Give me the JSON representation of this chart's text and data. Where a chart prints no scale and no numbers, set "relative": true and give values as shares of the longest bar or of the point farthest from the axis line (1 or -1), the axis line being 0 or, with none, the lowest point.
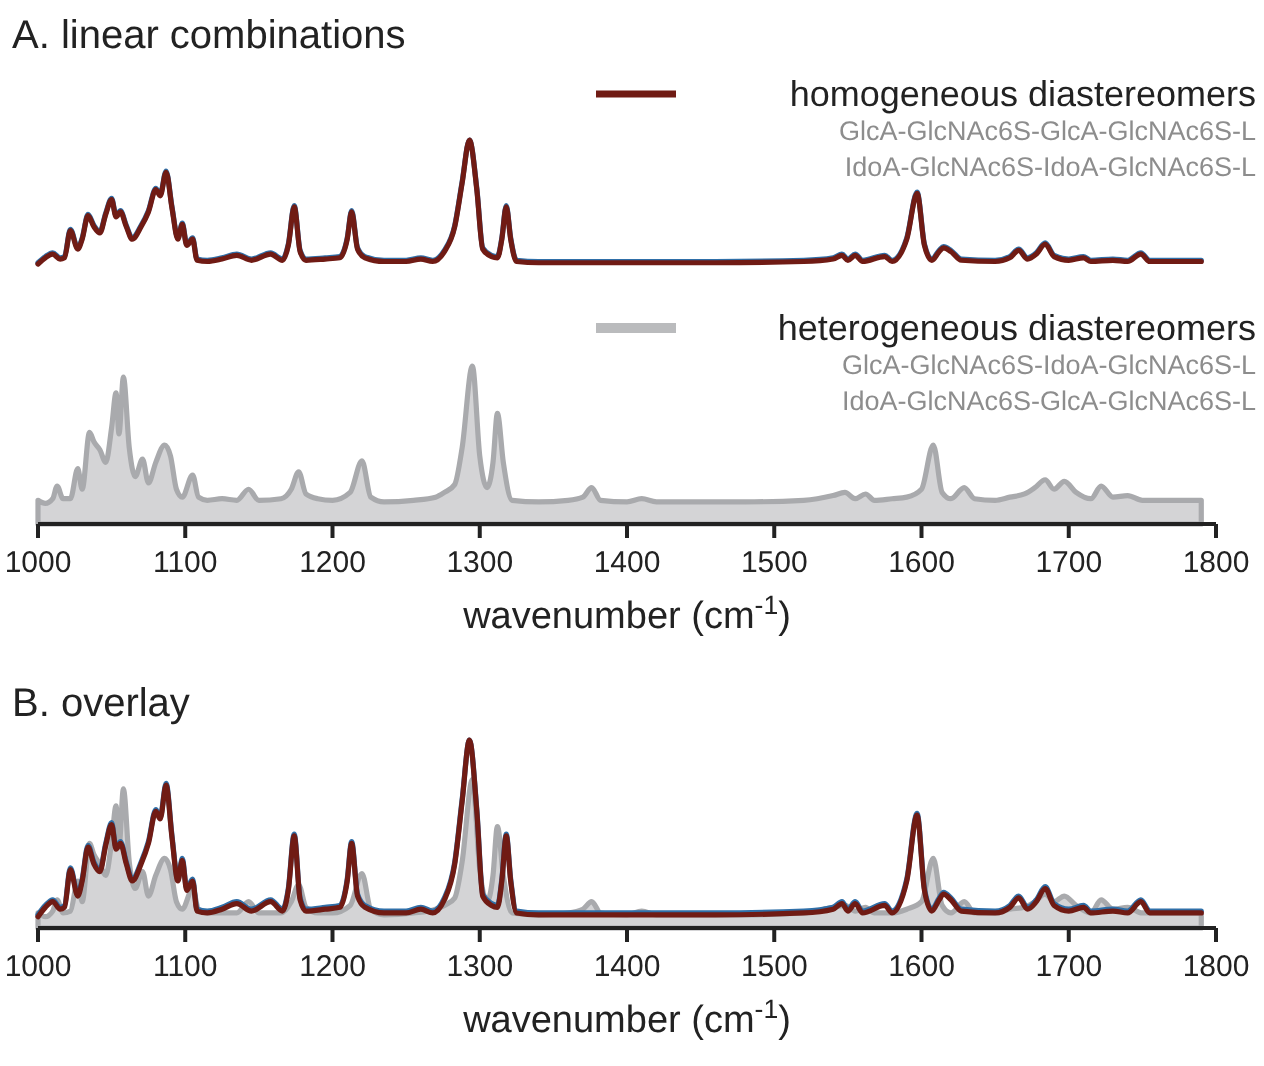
{
  "chart_data": [
    {
      "type": "line",
      "title": "A. linear combinations",
      "relative": true,
      "xlim": [
        1000,
        1800
      ],
      "tick_labels": false,
      "legend": "top right",
      "annotations": [
        "GlcA-GlcNAc6S-GlcA-GlcNAc6S-L",
        "IdoA-GlcNAc6S-IdoA-GlcNAc6S-L"
      ],
      "x": [
        1000,
        1005,
        1010,
        1015,
        1018,
        1022,
        1027,
        1030,
        1034,
        1038,
        1042,
        1046,
        1050,
        1053,
        1056,
        1060,
        1064,
        1070,
        1075,
        1080,
        1083,
        1087,
        1091,
        1095,
        1098,
        1101,
        1105,
        1108,
        1115,
        1125,
        1135,
        1145,
        1158,
        1166,
        1170,
        1174,
        1178,
        1182,
        1195,
        1205,
        1210,
        1213,
        1217,
        1222,
        1235,
        1250,
        1260,
        1268,
        1276,
        1283,
        1288,
        1293,
        1298,
        1302,
        1308,
        1312,
        1315,
        1318,
        1321,
        1325,
        1340,
        1400,
        1460,
        1520,
        1540,
        1546,
        1550,
        1555,
        1560,
        1575,
        1580,
        1590,
        1597,
        1602,
        1607,
        1612,
        1615,
        1620,
        1627,
        1650,
        1660,
        1666,
        1672,
        1678,
        1684,
        1690,
        1700,
        1710,
        1715,
        1730,
        1740,
        1749,
        1755,
        1770,
        1790
      ],
      "series": [
        {
          "color": "#2f6fa8",
          "values": [
            0.01,
            0.06,
            0.09,
            0.05,
            0.06,
            0.28,
            0.13,
            0.21,
            0.4,
            0.31,
            0.26,
            0.41,
            0.53,
            0.39,
            0.43,
            0.31,
            0.21,
            0.31,
            0.43,
            0.61,
            0.56,
            0.75,
            0.46,
            0.21,
            0.33,
            0.16,
            0.21,
            0.04,
            0.03,
            0.05,
            0.08,
            0.04,
            0.09,
            0.04,
            0.16,
            0.47,
            0.11,
            0.04,
            0.05,
            0.06,
            0.21,
            0.43,
            0.13,
            0.06,
            0.03,
            0.03,
            0.05,
            0.03,
            0.11,
            0.31,
            0.66,
            1,
            0.61,
            0.13,
            0.07,
            0.06,
            0.21,
            0.47,
            0.21,
            0.03,
            0.02,
            0.02,
            0.02,
            0.03,
            0.05,
            0.08,
            0.04,
            0.08,
            0.03,
            0.07,
            0.03,
            0.21,
            0.58,
            0.16,
            0.04,
            0.11,
            0.14,
            0.11,
            0.04,
            0.03,
            0.06,
            0.12,
            0.05,
            0.09,
            0.17,
            0.07,
            0.04,
            0.06,
            0.03,
            0.04,
            0.03,
            0.09,
            0.03,
            0.03,
            0.03
          ]
        },
        {
          "name": "homogeneous diastereomers",
          "color": "#701b14",
          "values": [
            0,
            0.05,
            0.08,
            0.04,
            0.05,
            0.27,
            0.12,
            0.2,
            0.39,
            0.3,
            0.25,
            0.4,
            0.52,
            0.38,
            0.42,
            0.3,
            0.2,
            0.3,
            0.42,
            0.6,
            0.55,
            0.74,
            0.45,
            0.2,
            0.32,
            0.15,
            0.2,
            0.03,
            0.02,
            0.04,
            0.07,
            0.03,
            0.08,
            0.03,
            0.15,
            0.46,
            0.1,
            0.03,
            0.04,
            0.05,
            0.2,
            0.42,
            0.12,
            0.05,
            0.02,
            0.02,
            0.04,
            0.02,
            0.1,
            0.3,
            0.65,
            1,
            0.6,
            0.12,
            0.06,
            0.05,
            0.2,
            0.46,
            0.2,
            0.02,
            0.01,
            0.01,
            0.01,
            0.02,
            0.04,
            0.07,
            0.03,
            0.07,
            0.02,
            0.06,
            0.02,
            0.2,
            0.57,
            0.15,
            0.03,
            0.1,
            0.13,
            0.1,
            0.03,
            0.02,
            0.05,
            0.11,
            0.04,
            0.08,
            0.16,
            0.06,
            0.03,
            0.05,
            0.02,
            0.03,
            0.02,
            0.08,
            0.02,
            0.02,
            0.02
          ]
        }
      ]
    },
    {
      "type": "area",
      "relative": true,
      "xlim": [
        1000,
        1800
      ],
      "xticks": [
        1000,
        1100,
        1200,
        1300,
        1400,
        1500,
        1600,
        1700,
        1800
      ],
      "tick_labels": "x",
      "xlabel": "wavenumber (cm$^{-1}$)",
      "legend": "top right",
      "annotations": [
        "GlcA-GlcNAc6S-IdoA-GlcNAc6S-L",
        "IdoA-GlcNAc6S-GlcA-GlcNAc6S-L"
      ],
      "series": [
        {
          "name": "heterogeneous diastereomers",
          "color": "#a9aaad",
          "x": [
            1000,
            1005,
            1010,
            1013,
            1017,
            1022,
            1027,
            1030,
            1035,
            1038,
            1042,
            1046,
            1050,
            1053,
            1055,
            1058,
            1062,
            1066,
            1071,
            1075,
            1080,
            1086,
            1090,
            1094,
            1098,
            1105,
            1109,
            1115,
            1125,
            1135,
            1143,
            1150,
            1165,
            1172,
            1177,
            1182,
            1190,
            1200,
            1212,
            1220,
            1226,
            1235,
            1255,
            1270,
            1276,
            1283,
            1288,
            1295,
            1300,
            1305,
            1309,
            1312,
            1316,
            1322,
            1340,
            1360,
            1370,
            1376,
            1382,
            1400,
            1410,
            1420,
            1480,
            1520,
            1540,
            1548,
            1555,
            1562,
            1568,
            1580,
            1590,
            1600,
            1608,
            1614,
            1620,
            1629,
            1636,
            1650,
            1660,
            1670,
            1677,
            1684,
            1690,
            1697,
            1705,
            1715,
            1722,
            1730,
            1740,
            1750,
            1790
          ],
          "values": [
            0.15,
            0.13,
            0.16,
            0.24,
            0.16,
            0.16,
            0.35,
            0.22,
            0.58,
            0.52,
            0.47,
            0.39,
            0.61,
            0.83,
            0.57,
            0.93,
            0.48,
            0.3,
            0.41,
            0.26,
            0.39,
            0.5,
            0.43,
            0.22,
            0.17,
            0.31,
            0.17,
            0.15,
            0.16,
            0.15,
            0.22,
            0.15,
            0.16,
            0.22,
            0.33,
            0.19,
            0.16,
            0.15,
            0.2,
            0.4,
            0.17,
            0.14,
            0.15,
            0.17,
            0.2,
            0.25,
            0.48,
            1,
            0.43,
            0.23,
            0.39,
            0.7,
            0.39,
            0.15,
            0.14,
            0.15,
            0.17,
            0.23,
            0.15,
            0.14,
            0.16,
            0.14,
            0.14,
            0.15,
            0.18,
            0.2,
            0.16,
            0.19,
            0.15,
            0.16,
            0.17,
            0.22,
            0.5,
            0.2,
            0.16,
            0.23,
            0.16,
            0.15,
            0.17,
            0.19,
            0.23,
            0.28,
            0.22,
            0.27,
            0.2,
            0.16,
            0.24,
            0.17,
            0.18,
            0.15,
            0.15
          ]
        }
      ]
    },
    {
      "type": "line",
      "title": "B. overlay",
      "relative": true,
      "xlim": [
        1000,
        1800
      ],
      "xticks": [
        1000,
        1100,
        1200,
        1300,
        1400,
        1500,
        1600,
        1700,
        1800
      ],
      "tick_labels": "x",
      "xlabel": "wavenumber (cm$^{-1}$)",
      "x": [
        1000,
        1005,
        1010,
        1015,
        1018,
        1022,
        1027,
        1030,
        1034,
        1038,
        1042,
        1046,
        1050,
        1053,
        1056,
        1060,
        1064,
        1070,
        1075,
        1080,
        1083,
        1087,
        1091,
        1095,
        1098,
        1101,
        1105,
        1108,
        1115,
        1125,
        1135,
        1145,
        1158,
        1166,
        1170,
        1174,
        1178,
        1182,
        1195,
        1205,
        1210,
        1213,
        1217,
        1222,
        1235,
        1250,
        1260,
        1268,
        1276,
        1283,
        1288,
        1293,
        1298,
        1302,
        1308,
        1312,
        1315,
        1318,
        1321,
        1325,
        1340,
        1400,
        1460,
        1520,
        1540,
        1546,
        1550,
        1555,
        1560,
        1575,
        1580,
        1590,
        1597,
        1602,
        1607,
        1612,
        1615,
        1620,
        1627,
        1650,
        1660,
        1666,
        1672,
        1678,
        1684,
        1690,
        1700,
        1710,
        1715,
        1730,
        1740,
        1749,
        1755,
        1770,
        1790
      ],
      "series": [
        {
          "type": "area",
          "color": "#a9aaad",
          "x": [
            1000,
            1005,
            1010,
            1013,
            1017,
            1022,
            1027,
            1030,
            1035,
            1038,
            1042,
            1046,
            1050,
            1053,
            1055,
            1058,
            1062,
            1066,
            1071,
            1075,
            1080,
            1086,
            1090,
            1094,
            1098,
            1105,
            1109,
            1115,
            1125,
            1135,
            1143,
            1150,
            1165,
            1172,
            1177,
            1182,
            1190,
            1200,
            1212,
            1220,
            1226,
            1235,
            1255,
            1270,
            1276,
            1283,
            1288,
            1295,
            1300,
            1305,
            1309,
            1312,
            1316,
            1322,
            1340,
            1360,
            1370,
            1376,
            1382,
            1400,
            1410,
            1420,
            1480,
            1520,
            1540,
            1548,
            1555,
            1562,
            1568,
            1580,
            1590,
            1600,
            1608,
            1614,
            1620,
            1629,
            1636,
            1650,
            1660,
            1670,
            1677,
            1684,
            1690,
            1697,
            1705,
            1715,
            1722,
            1730,
            1740,
            1750,
            1790
          ],
          "values": [
            0.08,
            0.06,
            0.09,
            0.15,
            0.08,
            0.09,
            0.25,
            0.14,
            0.45,
            0.39,
            0.34,
            0.28,
            0.46,
            0.65,
            0.43,
            0.74,
            0.35,
            0.21,
            0.3,
            0.17,
            0.28,
            0.37,
            0.31,
            0.14,
            0.1,
            0.21,
            0.1,
            0.08,
            0.08,
            0.08,
            0.14,
            0.08,
            0.08,
            0.14,
            0.23,
            0.11,
            0.08,
            0.08,
            0.12,
            0.29,
            0.1,
            0.07,
            0.08,
            0.1,
            0.12,
            0.16,
            0.35,
            0.79,
            0.31,
            0.14,
            0.28,
            0.54,
            0.28,
            0.08,
            0.07,
            0.08,
            0.1,
            0.14,
            0.08,
            0.07,
            0.09,
            0.07,
            0.07,
            0.08,
            0.11,
            0.12,
            0.09,
            0.11,
            0.08,
            0.08,
            0.1,
            0.14,
            0.37,
            0.12,
            0.08,
            0.14,
            0.08,
            0.08,
            0.1,
            0.11,
            0.14,
            0.18,
            0.14,
            0.17,
            0.12,
            0.08,
            0.15,
            0.1,
            0.11,
            0.08,
            0.08
          ]
        },
        {
          "color": "#2f6fa8",
          "values": [
            0.07,
            0.12,
            0.15,
            0.11,
            0.12,
            0.32,
            0.18,
            0.26,
            0.44,
            0.35,
            0.31,
            0.45,
            0.56,
            0.43,
            0.46,
            0.35,
            0.26,
            0.35,
            0.46,
            0.63,
            0.59,
            0.77,
            0.49,
            0.26,
            0.37,
            0.21,
            0.26,
            0.1,
            0.09,
            0.11,
            0.14,
            0.1,
            0.15,
            0.1,
            0.21,
            0.5,
            0.16,
            0.1,
            0.11,
            0.12,
            0.26,
            0.46,
            0.18,
            0.12,
            0.09,
            0.09,
            0.11,
            0.09,
            0.16,
            0.35,
            0.68,
            1,
            0.63,
            0.18,
            0.13,
            0.12,
            0.26,
            0.5,
            0.26,
            0.09,
            0.08,
            0.08,
            0.08,
            0.09,
            0.11,
            0.14,
            0.1,
            0.14,
            0.09,
            0.13,
            0.09,
            0.26,
            0.61,
            0.21,
            0.1,
            0.16,
            0.19,
            0.16,
            0.1,
            0.09,
            0.12,
            0.17,
            0.11,
            0.15,
            0.22,
            0.13,
            0.1,
            0.12,
            0.09,
            0.1,
            0.09,
            0.15,
            0.09,
            0.09,
            0.09
          ]
        },
        {
          "color": "#701b14",
          "values": [
            0.06,
            0.11,
            0.14,
            0.1,
            0.11,
            0.31,
            0.17,
            0.25,
            0.43,
            0.34,
            0.3,
            0.44,
            0.55,
            0.42,
            0.45,
            0.34,
            0.25,
            0.34,
            0.45,
            0.62,
            0.58,
            0.76,
            0.48,
            0.25,
            0.36,
            0.2,
            0.25,
            0.09,
            0.08,
            0.1,
            0.13,
            0.09,
            0.14,
            0.09,
            0.2,
            0.49,
            0.15,
            0.09,
            0.1,
            0.11,
            0.25,
            0.45,
            0.17,
            0.11,
            0.08,
            0.08,
            0.1,
            0.08,
            0.15,
            0.34,
            0.67,
            1,
            0.62,
            0.17,
            0.12,
            0.11,
            0.25,
            0.49,
            0.25,
            0.08,
            0.07,
            0.07,
            0.07,
            0.08,
            0.1,
            0.13,
            0.09,
            0.13,
            0.08,
            0.12,
            0.08,
            0.25,
            0.6,
            0.2,
            0.09,
            0.15,
            0.18,
            0.15,
            0.09,
            0.08,
            0.11,
            0.16,
            0.1,
            0.14,
            0.21,
            0.12,
            0.09,
            0.11,
            0.08,
            0.09,
            0.08,
            0.14,
            0.08,
            0.08,
            0.08
          ]
        }
      ]
    }
  ]
}
